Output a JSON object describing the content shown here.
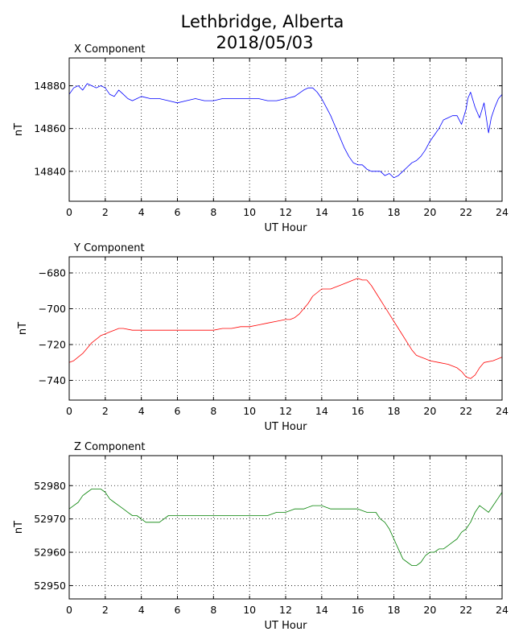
{
  "title_line1": "Lethbridge, Alberta",
  "title_line2": "2018/05/03",
  "chart_data": [
    {
      "type": "line",
      "title": "X Component",
      "xlabel": "UT Hour",
      "ylabel": "nT",
      "xlim": [
        0,
        24
      ],
      "ylim": [
        14826,
        14893
      ],
      "xticks": [
        0,
        2,
        4,
        6,
        8,
        10,
        12,
        14,
        16,
        18,
        20,
        22,
        24
      ],
      "yticks": [
        14840,
        14860,
        14880
      ],
      "grid": true,
      "color": "#0000ff",
      "series": [
        {
          "x": [
            0,
            0.25,
            0.5,
            0.75,
            1,
            1.25,
            1.5,
            1.75,
            2,
            2.25,
            2.5,
            2.75,
            3,
            3.25,
            3.5,
            3.75,
            4,
            4.5,
            5,
            5.5,
            6,
            6.5,
            7,
            7.5,
            8,
            8.5,
            9,
            9.5,
            10,
            10.5,
            11,
            11.5,
            12,
            12.5,
            13,
            13.25,
            13.5,
            13.75,
            14,
            14.25,
            14.5,
            14.75,
            15,
            15.25,
            15.5,
            15.75,
            16,
            16.25,
            16.5,
            16.75,
            17,
            17.25,
            17.5,
            17.75,
            18,
            18.25,
            18.5,
            18.75,
            19,
            19.25,
            19.5,
            19.75,
            20,
            20.25,
            20.5,
            20.75,
            21,
            21.25,
            21.5,
            21.75,
            22,
            22.1,
            22.25,
            22.5,
            22.75,
            23,
            23.25,
            23.4,
            23.6,
            23.8,
            24
          ],
          "values": [
            14876,
            14879,
            14880,
            14878,
            14881,
            14880,
            14879,
            14880,
            14879,
            14876,
            14875,
            14878,
            14876,
            14874,
            14873,
            14874,
            14875,
            14874,
            14874,
            14873,
            14872,
            14873,
            14874,
            14873,
            14873,
            14874,
            14874,
            14874,
            14874,
            14874,
            14873,
            14873,
            14874,
            14875,
            14878,
            14879,
            14879,
            14877,
            14874,
            14870,
            14866,
            14861,
            14856,
            14851,
            14847,
            14844,
            14843,
            14843,
            14841,
            14840,
            14840,
            14840,
            14838,
            14839,
            14837,
            14838,
            14840,
            14842,
            14844,
            14845,
            14847,
            14850,
            14854,
            14857,
            14860,
            14864,
            14865,
            14866,
            14866,
            14862,
            14869,
            14874,
            14877,
            14870,
            14865,
            14872,
            14858,
            14865,
            14870,
            14874,
            14876
          ]
        }
      ]
    },
    {
      "type": "line",
      "title": "Y Component",
      "xlabel": "UT Hour",
      "ylabel": "nT",
      "xlim": [
        0,
        24
      ],
      "ylim": [
        -751,
        -671
      ],
      "xticks": [
        0,
        2,
        4,
        6,
        8,
        10,
        12,
        14,
        16,
        18,
        20,
        22,
        24
      ],
      "yticks": [
        -740,
        -720,
        -700,
        -680
      ],
      "grid": true,
      "color": "#ff0000",
      "series": [
        {
          "x": [
            0,
            0.25,
            0.5,
            0.75,
            1,
            1.25,
            1.5,
            1.75,
            2,
            2.25,
            2.5,
            2.75,
            3,
            3.5,
            4,
            4.5,
            5,
            5.5,
            6,
            6.5,
            7,
            7.5,
            8,
            8.5,
            9,
            9.5,
            10,
            10.5,
            11,
            11.5,
            12,
            12.25,
            12.5,
            12.75,
            13,
            13.25,
            13.5,
            13.75,
            14,
            14.25,
            14.5,
            14.75,
            15,
            15.25,
            15.5,
            15.75,
            16,
            16.25,
            16.5,
            16.75,
            17,
            17.25,
            17.5,
            17.75,
            18,
            18.25,
            18.5,
            18.75,
            19,
            19.25,
            19.5,
            19.75,
            20,
            20.5,
            21,
            21.5,
            21.75,
            22,
            22.25,
            22.5,
            22.75,
            23,
            23.5,
            24
          ],
          "values": [
            -730,
            -729,
            -727,
            -725,
            -722,
            -719,
            -717,
            -715,
            -714,
            -713,
            -712,
            -711,
            -711,
            -712,
            -712,
            -712,
            -712,
            -712,
            -712,
            -712,
            -712,
            -712,
            -712,
            -711,
            -711,
            -710,
            -710,
            -709,
            -708,
            -707,
            -706,
            -706,
            -705,
            -703,
            -700,
            -697,
            -693,
            -691,
            -689,
            -689,
            -689,
            -688,
            -687,
            -686,
            -685,
            -684,
            -683,
            -684,
            -684,
            -687,
            -691,
            -695,
            -699,
            -703,
            -707,
            -711,
            -715,
            -719,
            -723,
            -726,
            -727,
            -728,
            -729,
            -730,
            -731,
            -733,
            -735,
            -738,
            -739,
            -737,
            -733,
            -730,
            -729,
            -727
          ]
        }
      ]
    },
    {
      "type": "line",
      "title": "Z Component",
      "xlabel": "UT Hour",
      "ylabel": "nT",
      "xlim": [
        0,
        24
      ],
      "ylim": [
        52946,
        52989
      ],
      "xticks": [
        0,
        2,
        4,
        6,
        8,
        10,
        12,
        14,
        16,
        18,
        20,
        22,
        24
      ],
      "yticks": [
        52950,
        52960,
        52970,
        52980
      ],
      "grid": true,
      "color": "#008000",
      "series": [
        {
          "x": [
            0,
            0.25,
            0.5,
            0.75,
            1,
            1.25,
            1.5,
            1.75,
            2,
            2.25,
            2.5,
            2.75,
            3,
            3.25,
            3.5,
            3.75,
            4,
            4.25,
            4.5,
            4.75,
            5,
            5.25,
            5.5,
            6,
            6.5,
            7,
            7.5,
            8,
            8.5,
            9,
            9.5,
            10,
            10.5,
            11,
            11.5,
            12,
            12.5,
            13,
            13.5,
            14,
            14.5,
            15,
            15.5,
            16,
            16.5,
            17,
            17.25,
            17.5,
            17.75,
            18,
            18.25,
            18.5,
            18.75,
            19,
            19.25,
            19.5,
            19.75,
            20,
            20.25,
            20.5,
            20.75,
            21,
            21.25,
            21.5,
            21.75,
            22,
            22.25,
            22.5,
            22.75,
            23,
            23.25,
            23.5,
            23.75,
            24
          ],
          "values": [
            52973,
            52974,
            52975,
            52977,
            52978,
            52979,
            52979,
            52979,
            52978,
            52976,
            52975,
            52974,
            52973,
            52972,
            52971,
            52971,
            52970,
            52969,
            52969,
            52969,
            52969,
            52970,
            52971,
            52971,
            52971,
            52971,
            52971,
            52971,
            52971,
            52971,
            52971,
            52971,
            52971,
            52971,
            52972,
            52972,
            52973,
            52973,
            52974,
            52974,
            52973,
            52973,
            52973,
            52973,
            52972,
            52972,
            52970,
            52969,
            52967,
            52964,
            52961,
            52958,
            52957,
            52956,
            52956,
            52957,
            52959,
            52960,
            52960,
            52961,
            52961,
            52962,
            52963,
            52964,
            52966,
            52967,
            52969,
            52972,
            52974,
            52973,
            52972,
            52974,
            52976,
            52978
          ]
        }
      ]
    }
  ]
}
